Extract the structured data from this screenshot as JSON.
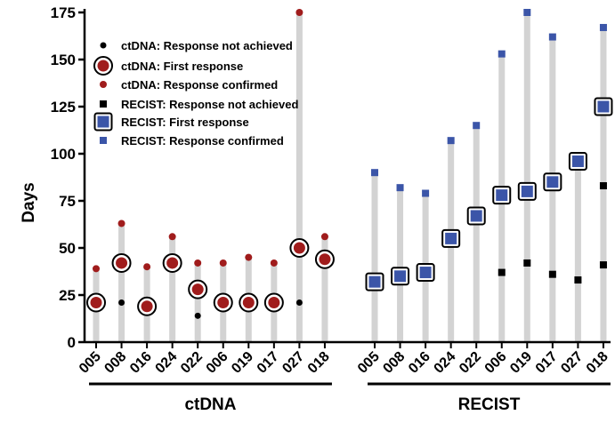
{
  "chart_data": {
    "type": "scatter",
    "ylabel": "Days",
    "ylim": [
      0,
      175
    ],
    "yticks": [
      0,
      25,
      50,
      75,
      100,
      125,
      150,
      175
    ],
    "groups": [
      {
        "name": "ctDNA",
        "categories": [
          "005",
          "008",
          "016",
          "024",
          "022",
          "006",
          "019",
          "017",
          "027",
          "018"
        ],
        "bar_top": [
          39,
          63,
          40,
          56,
          42,
          42,
          45,
          42,
          175,
          56
        ],
        "series": [
          {
            "name": "ctDNA: Response not achieved",
            "values": [
              null,
              21,
              null,
              null,
              14,
              null,
              null,
              null,
              21,
              null
            ]
          },
          {
            "name": "ctDNA: First response",
            "values": [
              21,
              42,
              19,
              42,
              28,
              21,
              21,
              21,
              50,
              44
            ]
          },
          {
            "name": "ctDNA: Response confirmed",
            "values": [
              39,
              63,
              40,
              56,
              42,
              42,
              45,
              42,
              175,
              56
            ]
          }
        ]
      },
      {
        "name": "RECIST",
        "categories": [
          "005",
          "008",
          "016",
          "024",
          "022",
          "006",
          "019",
          "017",
          "027",
          "018"
        ],
        "bar_top": [
          90,
          82,
          79,
          107,
          115,
          153,
          175,
          162,
          96,
          167
        ],
        "series": [
          {
            "name": "RECIST: Response not achieved",
            "values": [
              null,
              null,
              null,
              null,
              null,
              37,
              42,
              36,
              33,
              83
            ]
          },
          {
            "name": "RECIST: First response",
            "values": [
              32,
              35,
              37,
              55,
              67,
              78,
              80,
              85,
              96,
              125
            ]
          },
          {
            "name": "RECIST: Response confirmed",
            "values": [
              90,
              82,
              79,
              107,
              115,
              153,
              175,
              162,
              null,
              167
            ]
          },
          {
            "name": "",
            "values": [
              null,
              null,
              null,
              null,
              null,
              null,
              null,
              null,
              null,
              41
            ]
          }
        ]
      }
    ],
    "legend": {
      "placement": "top-left",
      "entries": [
        "ctDNA: Response not achieved",
        "ctDNA: First response",
        "ctDNA: Response confirmed",
        "RECIST: Response not achieved",
        "RECIST: First response",
        "RECIST: Response confirmed"
      ]
    },
    "grid": false
  },
  "colors": {
    "bar": "#d3d3d3",
    "red": "#a01c1c",
    "blue": "#3b55a8",
    "black": "#000000"
  }
}
